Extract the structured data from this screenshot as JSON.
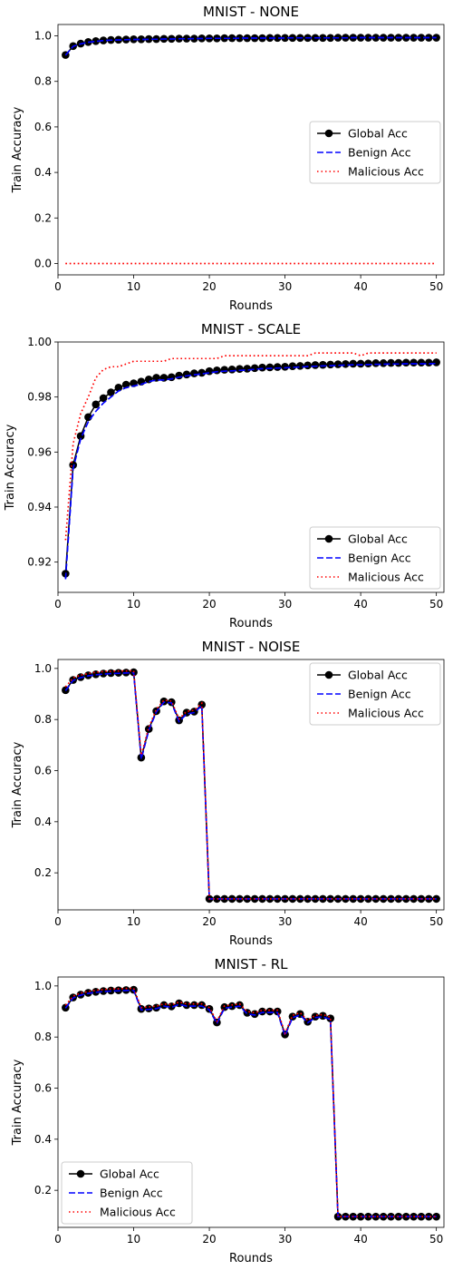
{
  "chart_data": [
    {
      "type": "line",
      "title": "MNIST - NONE",
      "xlabel": "Rounds",
      "ylabel": "Train Accuracy",
      "xlim": [
        0,
        51
      ],
      "ylim": [
        -0.05,
        1.05
      ],
      "xticks": [
        "0",
        "10",
        "20",
        "30",
        "40",
        "50"
      ],
      "yticks": [
        "0.0",
        "0.2",
        "0.4",
        "0.6",
        "0.8",
        "1.0"
      ],
      "legend_position": "center-right",
      "x": [
        1,
        2,
        3,
        4,
        5,
        6,
        7,
        8,
        9,
        10,
        11,
        12,
        13,
        14,
        15,
        16,
        17,
        18,
        19,
        20,
        21,
        22,
        23,
        24,
        25,
        26,
        27,
        28,
        29,
        30,
        31,
        32,
        33,
        34,
        35,
        36,
        37,
        38,
        39,
        40,
        41,
        42,
        43,
        44,
        45,
        46,
        47,
        48,
        49,
        50
      ],
      "series": [
        {
          "name": "Global Acc",
          "color": "#000000",
          "style": "solid-marker",
          "values": [
            0.916,
            0.955,
            0.966,
            0.973,
            0.977,
            0.98,
            0.982,
            0.983,
            0.984,
            0.985,
            0.985,
            0.986,
            0.986,
            0.987,
            0.987,
            0.988,
            0.988,
            0.988,
            0.989,
            0.989,
            0.989,
            0.99,
            0.99,
            0.99,
            0.99,
            0.99,
            0.99,
            0.991,
            0.991,
            0.991,
            0.991,
            0.991,
            0.991,
            0.991,
            0.991,
            0.991,
            0.992,
            0.992,
            0.992,
            0.992,
            0.992,
            0.992,
            0.992,
            0.992,
            0.992,
            0.992,
            0.992,
            0.992,
            0.992,
            0.992
          ]
        },
        {
          "name": "Benign Acc",
          "color": "#0000ff",
          "style": "dashed",
          "values": [
            0.915,
            0.954,
            0.965,
            0.972,
            0.976,
            0.979,
            0.981,
            0.982,
            0.983,
            0.984,
            0.984,
            0.985,
            0.985,
            0.986,
            0.986,
            0.987,
            0.987,
            0.988,
            0.988,
            0.989,
            0.989,
            0.989,
            0.989,
            0.99,
            0.99,
            0.99,
            0.99,
            0.99,
            0.99,
            0.991,
            0.991,
            0.991,
            0.991,
            0.991,
            0.991,
            0.991,
            0.991,
            0.991,
            0.992,
            0.992,
            0.992,
            0.992,
            0.992,
            0.992,
            0.992,
            0.992,
            0.992,
            0.992,
            0.992,
            0.992
          ]
        },
        {
          "name": "Malicious Acc",
          "color": "#ff0000",
          "style": "dotted",
          "values": [
            0,
            0,
            0,
            0,
            0,
            0,
            0,
            0,
            0,
            0,
            0,
            0,
            0,
            0,
            0,
            0,
            0,
            0,
            0,
            0,
            0,
            0,
            0,
            0,
            0,
            0,
            0,
            0,
            0,
            0,
            0,
            0,
            0,
            0,
            0,
            0,
            0,
            0,
            0,
            0,
            0,
            0,
            0,
            0,
            0,
            0,
            0,
            0,
            0,
            0
          ]
        }
      ]
    },
    {
      "type": "line",
      "title": "MNIST - SCALE",
      "xlabel": "Rounds",
      "ylabel": "Train Accuracy",
      "xlim": [
        0,
        51
      ],
      "ylim": [
        0.909,
        1.0
      ],
      "xticks": [
        "0",
        "10",
        "20",
        "30",
        "40",
        "50"
      ],
      "yticks": [
        "0.92",
        "0.94",
        "0.96",
        "0.98",
        "1.00"
      ],
      "legend_position": "lower-right",
      "x": [
        1,
        2,
        3,
        4,
        5,
        6,
        7,
        8,
        9,
        10,
        11,
        12,
        13,
        14,
        15,
        16,
        17,
        18,
        19,
        20,
        21,
        22,
        23,
        24,
        25,
        26,
        27,
        28,
        29,
        30,
        31,
        32,
        33,
        34,
        35,
        36,
        37,
        38,
        39,
        40,
        41,
        42,
        43,
        44,
        45,
        46,
        47,
        48,
        49,
        50
      ],
      "series": [
        {
          "name": "Global Acc",
          "color": "#000000",
          "style": "solid-marker",
          "values": [
            0.9158,
            0.9553,
            0.9658,
            0.9727,
            0.9773,
            0.9796,
            0.9817,
            0.9834,
            0.9845,
            0.985,
            0.9856,
            0.9864,
            0.987,
            0.987,
            0.9872,
            0.9878,
            0.9882,
            0.9886,
            0.9888,
            0.9894,
            0.9897,
            0.9899,
            0.99,
            0.9902,
            0.9903,
            0.9905,
            0.9907,
            0.9908,
            0.9909,
            0.991,
            0.9912,
            0.9913,
            0.9915,
            0.9916,
            0.9917,
            0.9918,
            0.9919,
            0.992,
            0.9921,
            0.9921,
            0.9922,
            0.9923,
            0.9923,
            0.9924,
            0.9924,
            0.9925,
            0.9925,
            0.9925,
            0.9925,
            0.9926
          ]
        },
        {
          "name": "Benign Acc",
          "color": "#0000ff",
          "style": "dashed",
          "values": [
            0.9138,
            0.954,
            0.9648,
            0.971,
            0.9748,
            0.9778,
            0.98,
            0.9822,
            0.9834,
            0.984,
            0.9846,
            0.9856,
            0.9862,
            0.9862,
            0.9866,
            0.9872,
            0.9877,
            0.9881,
            0.9884,
            0.9888,
            0.9892,
            0.9894,
            0.9895,
            0.9897,
            0.9898,
            0.9901,
            0.9903,
            0.9904,
            0.9905,
            0.9906,
            0.9908,
            0.9909,
            0.9911,
            0.9912,
            0.9913,
            0.9914,
            0.9915,
            0.9916,
            0.9917,
            0.9917,
            0.9918,
            0.9919,
            0.9919,
            0.992,
            0.992,
            0.9921,
            0.9921,
            0.9921,
            0.9921,
            0.9922
          ]
        },
        {
          "name": "Malicious Acc",
          "color": "#ff0000",
          "style": "dotted",
          "values": [
            0.928,
            0.963,
            0.974,
            0.98,
            0.987,
            0.99,
            0.991,
            0.991,
            0.992,
            0.993,
            0.993,
            0.993,
            0.993,
            0.993,
            0.994,
            0.994,
            0.994,
            0.994,
            0.994,
            0.994,
            0.994,
            0.995,
            0.995,
            0.995,
            0.995,
            0.995,
            0.995,
            0.995,
            0.995,
            0.995,
            0.995,
            0.995,
            0.995,
            0.996,
            0.996,
            0.996,
            0.996,
            0.996,
            0.996,
            0.995,
            0.996,
            0.996,
            0.996,
            0.996,
            0.996,
            0.996,
            0.996,
            0.996,
            0.996,
            0.996
          ]
        }
      ]
    },
    {
      "type": "line",
      "title": "MNIST - NOISE",
      "xlabel": "Rounds",
      "ylabel": "Train Accuracy",
      "xlim": [
        0,
        51
      ],
      "ylim": [
        0.055,
        1.035
      ],
      "xticks": [
        "0",
        "10",
        "20",
        "30",
        "40",
        "50"
      ],
      "yticks": [
        "0.2",
        "0.4",
        "0.6",
        "0.8",
        "1.0"
      ],
      "legend_position": "upper-right",
      "x": [
        1,
        2,
        3,
        4,
        5,
        6,
        7,
        8,
        9,
        10,
        11,
        12,
        13,
        14,
        15,
        16,
        17,
        18,
        19,
        20,
        21,
        22,
        23,
        24,
        25,
        26,
        27,
        28,
        29,
        30,
        31,
        32,
        33,
        34,
        35,
        36,
        37,
        38,
        39,
        40,
        41,
        42,
        43,
        44,
        45,
        46,
        47,
        48,
        49,
        50
      ],
      "series": [
        {
          "name": "Global Acc",
          "color": "#000000",
          "style": "solid-marker",
          "values": [
            0.915,
            0.955,
            0.966,
            0.973,
            0.977,
            0.98,
            0.982,
            0.983,
            0.984,
            0.985,
            0.651,
            0.763,
            0.833,
            0.871,
            0.868,
            0.797,
            0.827,
            0.831,
            0.858,
            0.098,
            0.098,
            0.098,
            0.098,
            0.098,
            0.098,
            0.098,
            0.098,
            0.098,
            0.098,
            0.098,
            0.098,
            0.098,
            0.098,
            0.098,
            0.098,
            0.098,
            0.098,
            0.098,
            0.098,
            0.098,
            0.098,
            0.098,
            0.098,
            0.098,
            0.098,
            0.098,
            0.098,
            0.098,
            0.098,
            0.098
          ]
        },
        {
          "name": "Benign Acc",
          "color": "#0000ff",
          "style": "dashed",
          "values": [
            0.913,
            0.953,
            0.964,
            0.971,
            0.975,
            0.978,
            0.98,
            0.981,
            0.982,
            0.983,
            0.645,
            0.758,
            0.83,
            0.868,
            0.865,
            0.792,
            0.822,
            0.827,
            0.854,
            0.098,
            0.098,
            0.098,
            0.098,
            0.098,
            0.098,
            0.098,
            0.098,
            0.098,
            0.098,
            0.098,
            0.098,
            0.098,
            0.098,
            0.098,
            0.098,
            0.098,
            0.098,
            0.098,
            0.098,
            0.098,
            0.098,
            0.098,
            0.098,
            0.098,
            0.098,
            0.098,
            0.098,
            0.098,
            0.098,
            0.098
          ]
        },
        {
          "name": "Malicious Acc",
          "color": "#ff0000",
          "style": "dotted",
          "values": [
            0.928,
            0.963,
            0.974,
            0.98,
            0.985,
            0.988,
            0.989,
            0.99,
            0.99,
            0.991,
            0.66,
            0.77,
            0.84,
            0.876,
            0.872,
            0.803,
            0.832,
            0.836,
            0.864,
            0.098,
            0.098,
            0.098,
            0.098,
            0.098,
            0.098,
            0.098,
            0.098,
            0.098,
            0.098,
            0.098,
            0.098,
            0.098,
            0.098,
            0.098,
            0.098,
            0.098,
            0.098,
            0.098,
            0.098,
            0.098,
            0.098,
            0.098,
            0.098,
            0.098,
            0.098,
            0.098,
            0.098,
            0.098,
            0.098,
            0.098
          ]
        }
      ]
    },
    {
      "type": "line",
      "title": "MNIST - RL",
      "xlabel": "Rounds",
      "ylabel": "Train Accuracy",
      "xlim": [
        0,
        51
      ],
      "ylim": [
        0.055,
        1.035
      ],
      "xticks": [
        "0",
        "10",
        "20",
        "30",
        "40",
        "50"
      ],
      "yticks": [
        "0.2",
        "0.4",
        "0.6",
        "0.8",
        "1.0"
      ],
      "legend_position": "lower-left",
      "x": [
        1,
        2,
        3,
        4,
        5,
        6,
        7,
        8,
        9,
        10,
        11,
        12,
        13,
        14,
        15,
        16,
        17,
        18,
        19,
        20,
        21,
        22,
        23,
        24,
        25,
        26,
        27,
        28,
        29,
        30,
        31,
        32,
        33,
        34,
        35,
        36,
        37,
        38,
        39,
        40,
        41,
        42,
        43,
        44,
        45,
        46,
        47,
        48,
        49,
        50
      ],
      "series": [
        {
          "name": "Global Acc",
          "color": "#000000",
          "style": "solid-marker",
          "values": [
            0.915,
            0.955,
            0.966,
            0.973,
            0.977,
            0.98,
            0.982,
            0.983,
            0.984,
            0.985,
            0.91,
            0.912,
            0.915,
            0.925,
            0.92,
            0.932,
            0.925,
            0.925,
            0.925,
            0.91,
            0.857,
            0.917,
            0.921,
            0.925,
            0.895,
            0.89,
            0.9,
            0.9,
            0.9,
            0.81,
            0.88,
            0.89,
            0.86,
            0.88,
            0.883,
            0.873,
            0.097,
            0.097,
            0.097,
            0.097,
            0.097,
            0.097,
            0.097,
            0.097,
            0.097,
            0.097,
            0.097,
            0.097,
            0.097,
            0.097
          ]
        },
        {
          "name": "Benign Acc",
          "color": "#0000ff",
          "style": "dashed",
          "values": [
            0.913,
            0.953,
            0.964,
            0.971,
            0.975,
            0.978,
            0.98,
            0.981,
            0.982,
            0.983,
            0.906,
            0.908,
            0.911,
            0.921,
            0.916,
            0.928,
            0.921,
            0.921,
            0.921,
            0.906,
            0.853,
            0.913,
            0.917,
            0.921,
            0.891,
            0.886,
            0.896,
            0.896,
            0.896,
            0.806,
            0.876,
            0.886,
            0.856,
            0.876,
            0.879,
            0.869,
            0.097,
            0.097,
            0.097,
            0.097,
            0.097,
            0.097,
            0.097,
            0.097,
            0.097,
            0.097,
            0.097,
            0.097,
            0.097,
            0.097
          ]
        },
        {
          "name": "Malicious Acc",
          "color": "#ff0000",
          "style": "dotted",
          "values": [
            0.925,
            0.96,
            0.972,
            0.978,
            0.983,
            0.986,
            0.988,
            0.989,
            0.99,
            0.991,
            0.915,
            0.918,
            0.921,
            0.93,
            0.926,
            0.937,
            0.93,
            0.93,
            0.93,
            0.915,
            0.862,
            0.922,
            0.926,
            0.93,
            0.9,
            0.895,
            0.905,
            0.905,
            0.905,
            0.815,
            0.885,
            0.895,
            0.865,
            0.885,
            0.888,
            0.878,
            0.097,
            0.097,
            0.097,
            0.097,
            0.097,
            0.097,
            0.097,
            0.097,
            0.097,
            0.097,
            0.097,
            0.097,
            0.097,
            0.097
          ]
        }
      ]
    }
  ]
}
